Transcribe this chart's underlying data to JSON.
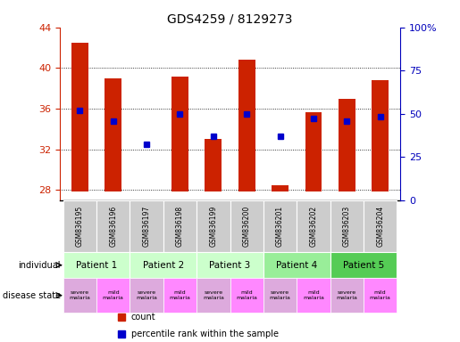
{
  "title": "GDS4259 / 8129273",
  "samples": [
    "GSM836195",
    "GSM836196",
    "GSM836197",
    "GSM836198",
    "GSM836199",
    "GSM836200",
    "GSM836201",
    "GSM836202",
    "GSM836203",
    "GSM836204"
  ],
  "counts": [
    42.5,
    39.0,
    27.9,
    39.2,
    33.0,
    40.8,
    28.5,
    35.7,
    37.0,
    38.8
  ],
  "percentiles": [
    35.8,
    34.8,
    32.5,
    35.5,
    33.3,
    35.5,
    33.3,
    35.0,
    34.8,
    35.2
  ],
  "ylim_left": [
    27,
    44
  ],
  "yticks_left": [
    28,
    32,
    36,
    40,
    44
  ],
  "ylim_right": [
    0,
    100
  ],
  "yticks_right": [
    0,
    25,
    50,
    75,
    100
  ],
  "bar_color": "#cc2200",
  "dot_color": "#0000cc",
  "bar_bottom": 27.9,
  "patients": [
    {
      "label": "Patient 1",
      "cols": [
        0,
        1
      ],
      "color": "#ccffcc"
    },
    {
      "label": "Patient 2",
      "cols": [
        2,
        3
      ],
      "color": "#ccffcc"
    },
    {
      "label": "Patient 3",
      "cols": [
        4,
        5
      ],
      "color": "#ccffcc"
    },
    {
      "label": "Patient 4",
      "cols": [
        6,
        7
      ],
      "color": "#99ee99"
    },
    {
      "label": "Patient 5",
      "cols": [
        8,
        9
      ],
      "color": "#55cc55"
    }
  ],
  "disease_states": [
    {
      "label": "severe\nmalaria",
      "color": "#ddaadd"
    },
    {
      "label": "mild\nmalaria",
      "color": "#ff88ff"
    },
    {
      "label": "severe\nmalaria",
      "color": "#ddaadd"
    },
    {
      "label": "mild\nmalaria",
      "color": "#ff88ff"
    },
    {
      "label": "severe\nmalaria",
      "color": "#ddaadd"
    },
    {
      "label": "mild\nmalaria",
      "color": "#ff88ff"
    },
    {
      "label": "severe\nmalaria",
      "color": "#ddaadd"
    },
    {
      "label": "mild\nmalaria",
      "color": "#ff88ff"
    },
    {
      "label": "severe\nmalaria",
      "color": "#ddaadd"
    },
    {
      "label": "mild\nmalaria",
      "color": "#ff88ff"
    }
  ],
  "legend_items": [
    {
      "label": "count",
      "color": "#cc2200"
    },
    {
      "label": "percentile rank within the sample",
      "color": "#0000cc"
    }
  ],
  "left_axis_color": "#cc2200",
  "right_axis_color": "#0000bb",
  "background_color": "#ffffff",
  "sample_bg_color": "#cccccc"
}
